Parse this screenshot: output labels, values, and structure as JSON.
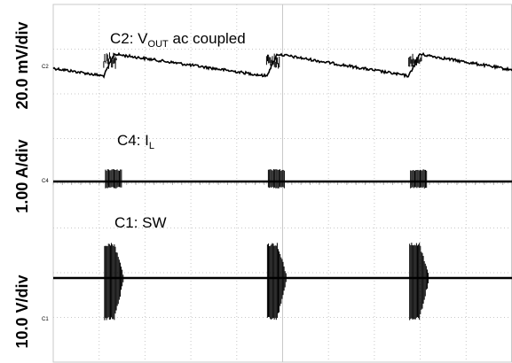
{
  "chart_data": {
    "type": "line",
    "title": "",
    "grid": true,
    "divisions": {
      "x": 10,
      "y": 8
    },
    "y_scale_labels": [
      {
        "channel": "C2",
        "text": "20.0 mV/div"
      },
      {
        "channel": "C4",
        "text": "1.00 A/div"
      },
      {
        "channel": "C1",
        "text": "10.0 V/div"
      }
    ],
    "traces": [
      {
        "channel": "C2",
        "label_prefix": "C2: V",
        "label_sub": "OUT",
        "label_suffix": " ac coupled",
        "marker": "C2",
        "description": "VOUT ripple: sawtooth — sharp rise at each switching burst, slow linear decay between bursts",
        "events_div": [
          1.1,
          4.65,
          7.75
        ],
        "peak_div_above_marker": 0.35,
        "trough_div_below_marker": 0.22
      },
      {
        "channel": "C4",
        "label_prefix": "C4: I",
        "label_sub": "L",
        "label_suffix": "",
        "marker": "C4",
        "description": "Inductor current: flat near zero with short bursts at each switching event",
        "events_div": [
          1.1,
          4.65,
          7.75
        ]
      },
      {
        "channel": "C1",
        "label_prefix": "C1: SW",
        "label_sub": "",
        "label_suffix": "",
        "marker": "C1",
        "description": "Switch node: flat at output voltage level with ringing switching bursts",
        "events_div": [
          1.1,
          4.65,
          7.75
        ]
      }
    ],
    "colors": {
      "trace": "#000000",
      "grid": "#c8c8c8",
      "grid_dots": "#b0b0b0",
      "background": "#ffffff"
    }
  }
}
